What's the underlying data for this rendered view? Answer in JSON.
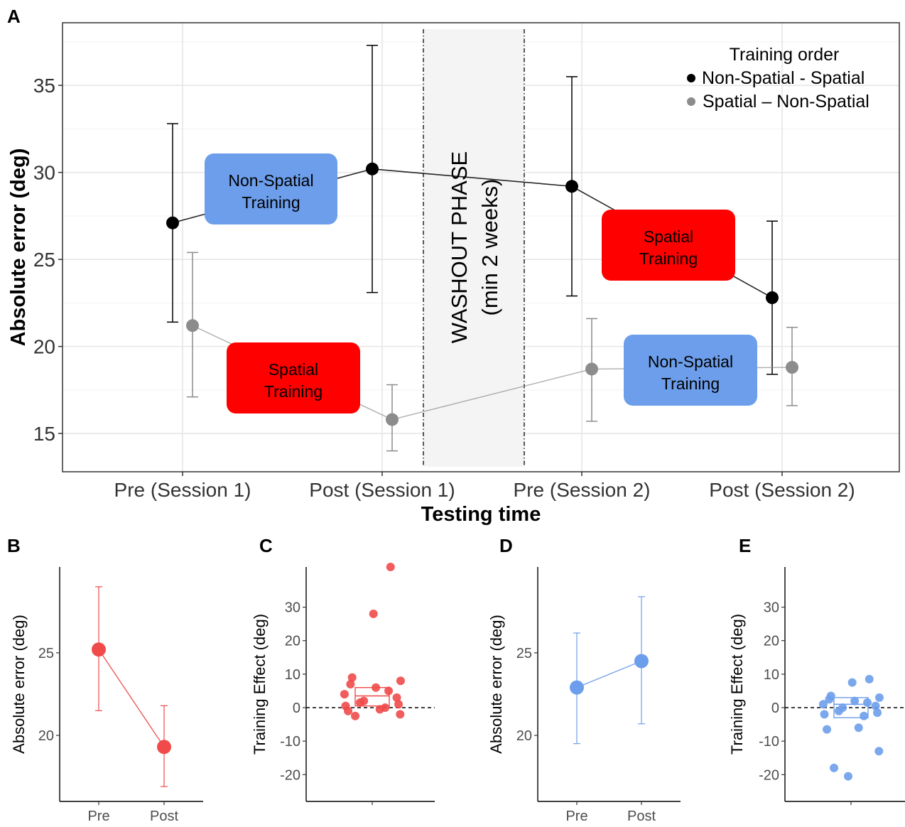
{
  "colors": {
    "nonspatial_spatial": "#000000",
    "spatial_nonspatial": "#8c8c8c",
    "spatial_training": "#ff0000",
    "nonspatial_training": "#6d9eeb",
    "panel_red": "#f04a4a",
    "panel_blue": "#6d9eeb",
    "washout_fill": "#f4f4f4"
  },
  "chart_data": [
    {
      "panel": "A",
      "type": "line",
      "xlabel": "Testing time",
      "ylabel": "Absolute error (deg)",
      "categories": [
        "Pre (Session 1)",
        "Post (Session 1)",
        "Pre (Session 2)",
        "Post (Session 2)"
      ],
      "yticks": [
        15,
        20,
        25,
        30,
        35
      ],
      "ylim": [
        12.8,
        38.6
      ],
      "grid": true,
      "legend": {
        "title": "Training order",
        "position": "top-right",
        "entries": [
          "Non-Spatial - Spatial",
          "Spatial – Non-Spatial"
        ]
      },
      "series": [
        {
          "name": "Non-Spatial - Spatial",
          "color": "#000000",
          "values": [
            27.1,
            30.2,
            29.2,
            22.8
          ],
          "err_low": [
            21.4,
            23.1,
            22.9,
            18.4
          ],
          "err_high": [
            32.8,
            37.3,
            35.5,
            27.2
          ]
        },
        {
          "name": "Spatial – Non-Spatial",
          "color": "#8c8c8c",
          "values": [
            21.2,
            15.8,
            18.7,
            18.8
          ],
          "err_low": [
            17.1,
            14.0,
            15.7,
            16.6
          ],
          "err_high": [
            25.4,
            17.8,
            21.6,
            21.1
          ]
        }
      ],
      "annotations": {
        "ns_training_1": [
          "Non-Spatial",
          "Training"
        ],
        "sp_training_1": [
          "Spatial",
          "Training"
        ],
        "sp_training_2": [
          "Spatial",
          "Training"
        ],
        "ns_training_2": [
          "Non-Spatial",
          "Training"
        ],
        "washout_line1": "WASHOUT PHASE",
        "washout_line2": "(min 2 weeks)"
      }
    },
    {
      "panel": "B",
      "type": "line",
      "ylabel": "Absolute error (deg)",
      "categories": [
        "Pre",
        "Post"
      ],
      "yticks": [
        20,
        25
      ],
      "ylim": [
        16.0,
        30.2
      ],
      "values": [
        25.2,
        19.3
      ],
      "err_low": [
        21.5,
        16.9
      ],
      "err_high": [
        29.0,
        21.8
      ],
      "color": "#f04a4a"
    },
    {
      "panel": "C",
      "type": "scatter",
      "ylabel": "Training Effect (deg)",
      "yticks": [
        -20,
        -10,
        0,
        10,
        20,
        30
      ],
      "ylim": [
        -28,
        42
      ],
      "reference_line": 0,
      "box": {
        "q1": 0.5,
        "median": 3.5,
        "q3": 6
      },
      "points": [
        42,
        28,
        9,
        8,
        7,
        6,
        5,
        4,
        3,
        2,
        1.5,
        1,
        0.5,
        0,
        -0.5,
        -1,
        -2,
        -2.5
      ],
      "color": "#f04a4a"
    },
    {
      "panel": "D",
      "type": "line",
      "ylabel": "Absolute error (deg)",
      "categories": [
        "Pre",
        "Post"
      ],
      "yticks": [
        20,
        25
      ],
      "ylim": [
        16.0,
        30.2
      ],
      "values": [
        22.9,
        24.5
      ],
      "err_low": [
        19.5,
        20.7
      ],
      "err_high": [
        26.2,
        28.4
      ],
      "color": "#6d9eeb"
    },
    {
      "panel": "E",
      "type": "scatter",
      "ylabel": "Training Effect (deg)",
      "yticks": [
        -20,
        -10,
        0,
        10,
        20,
        30
      ],
      "ylim": [
        -28,
        42
      ],
      "reference_line": 0,
      "box": {
        "q1": -3,
        "median": 1,
        "q3": 3
      },
      "points": [
        8.5,
        7.5,
        3.5,
        3,
        2.5,
        2,
        1.5,
        1,
        0.5,
        0,
        -1,
        -1.5,
        -2,
        -2.5,
        -6,
        -6.5,
        -13,
        -18,
        -20.5
      ],
      "color": "#6d9eeb"
    }
  ]
}
